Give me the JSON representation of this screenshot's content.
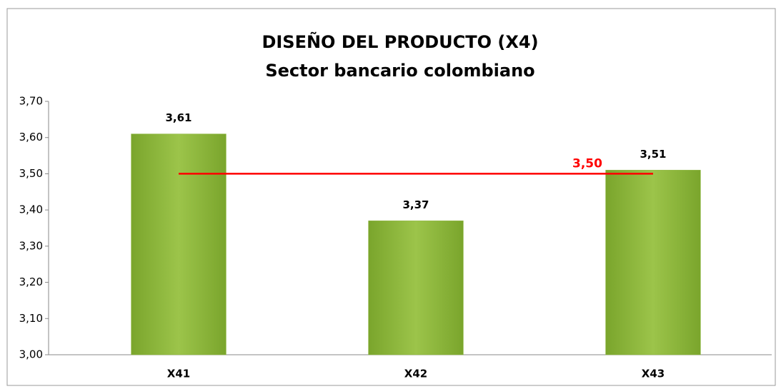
{
  "chart_data": {
    "type": "bar",
    "title": "DISEÑO DEL PRODUCTO (X4)",
    "subtitle": "Sector bancario colombiano",
    "categories": [
      "X41",
      "X42",
      "X43"
    ],
    "values": [
      3.61,
      3.37,
      3.51
    ],
    "value_labels": [
      "3,61",
      "3,37",
      "3,51"
    ],
    "color": "#8ab43a",
    "ylim": [
      3.0,
      3.7
    ],
    "yticks": [
      {
        "value": 3.0,
        "label": "3,00"
      },
      {
        "value": 3.1,
        "label": "3,10"
      },
      {
        "value": 3.2,
        "label": "3,20"
      },
      {
        "value": 3.3,
        "label": "3,30"
      },
      {
        "value": 3.4,
        "label": "3,40"
      },
      {
        "value": 3.5,
        "label": "3,50"
      },
      {
        "value": 3.6,
        "label": "3,60"
      },
      {
        "value": 3.7,
        "label": "3,70"
      }
    ],
    "reference_line": {
      "value": 3.5,
      "label": "3,50",
      "color": "#ff0000"
    },
    "grid": false
  }
}
